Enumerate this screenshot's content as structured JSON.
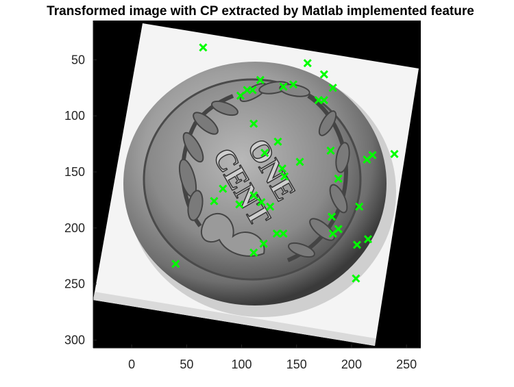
{
  "chart_data": {
    "type": "scatter",
    "title": "Transformed image with CP extracted by Matlab implemented feature",
    "xlabel": "",
    "ylabel": "",
    "xlim": [
      -35,
      263
    ],
    "ylim": [
      15,
      307
    ],
    "y_reversed": true,
    "grid": false,
    "xticks": [
      0,
      50,
      100,
      150,
      200,
      250
    ],
    "yticks": [
      50,
      100,
      150,
      200,
      250,
      300
    ],
    "background_image": "coin-one-cent-grayscale",
    "marker": "x",
    "marker_color": "#00ff00",
    "series": [
      {
        "x": [
          65,
          160,
          175,
          183,
          117,
          105,
          110,
          99,
          138,
          147,
          170,
          175,
          111,
          133,
          121,
          153,
          181,
          214,
          219,
          239,
          137,
          139,
          83,
          75,
          98,
          111,
          118,
          126,
          188,
          207,
          182,
          188,
          183,
          205,
          215,
          132,
          138,
          120,
          111,
          40,
          204
        ],
        "y": [
          39,
          53,
          63,
          75,
          68,
          77,
          77,
          82,
          74,
          72,
          86,
          86,
          107,
          123,
          133,
          141,
          131,
          139,
          135,
          134,
          147,
          154,
          165,
          176,
          179,
          171,
          177,
          181,
          156,
          181,
          190,
          201,
          205,
          215,
          210,
          205,
          205,
          214,
          222,
          232,
          245
        ]
      }
    ]
  }
}
